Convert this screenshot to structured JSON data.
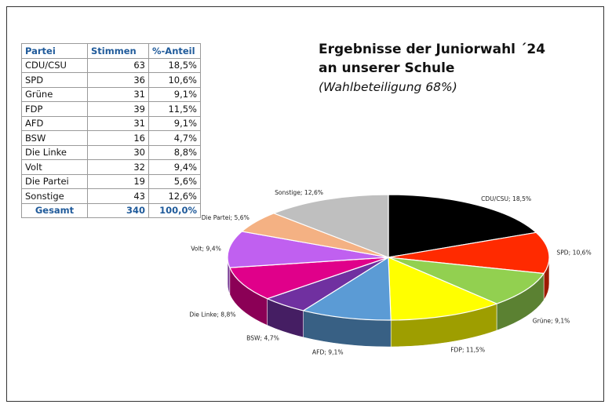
{
  "table": {
    "headers": [
      "Partei",
      "Stimmen",
      "%-Anteil"
    ],
    "rows": [
      [
        "CDU/CSU",
        "63",
        "18,5%"
      ],
      [
        "SPD",
        "36",
        "10,6%"
      ],
      [
        "Grüne",
        "31",
        "9,1%"
      ],
      [
        "FDP",
        "39",
        "11,5%"
      ],
      [
        "AFD",
        "31",
        "9,1%"
      ],
      [
        "BSW",
        "16",
        "4,7%"
      ],
      [
        "Die Linke",
        "30",
        "8,8%"
      ],
      [
        "Volt",
        "32",
        "9,4%"
      ],
      [
        "Die Partei",
        "19",
        "5,6%"
      ],
      [
        "Sonstige",
        "43",
        "12,6%"
      ]
    ],
    "total": [
      "Gesamt",
      "340",
      "100,0%"
    ]
  },
  "chart_data": {
    "type": "pie",
    "title": "Ergebnisse der Juniorwahl ´24\nan unserer Schule",
    "subtitle": "(Wahlbeteiligung 68%)",
    "slices": [
      {
        "name": "CDU/CSU",
        "value": 18.5,
        "label": "CDU/CSU; 18,5%",
        "color": "#000000"
      },
      {
        "name": "SPD",
        "value": 10.6,
        "label": "SPD; 10,6%",
        "color": "#ff2a00"
      },
      {
        "name": "Grüne",
        "value": 9.1,
        "label": "Grüne; 9,1%",
        "color": "#92d050"
      },
      {
        "name": "FDP",
        "value": 11.5,
        "label": "FDP; 11,5%",
        "color": "#ffff00"
      },
      {
        "name": "AFD",
        "value": 9.1,
        "label": "AFD; 9,1%",
        "color": "#5b9bd5"
      },
      {
        "name": "BSW",
        "value": 4.7,
        "label": "BSW; 4,7%",
        "color": "#7030a0"
      },
      {
        "name": "Die Linke",
        "value": 8.8,
        "label": "Die Linke; 8,8%",
        "color": "#e0008a"
      },
      {
        "name": "Volt",
        "value": 9.4,
        "label": "Volt; 9,4%",
        "color": "#c060f0"
      },
      {
        "name": "Die Partei",
        "value": 5.6,
        "label": "Die Partei; 5,6%",
        "color": "#f4b183"
      },
      {
        "name": "Sonstige",
        "value": 12.6,
        "label": "Sonstige; 12,6%",
        "color": "#bfbfbf"
      }
    ]
  }
}
